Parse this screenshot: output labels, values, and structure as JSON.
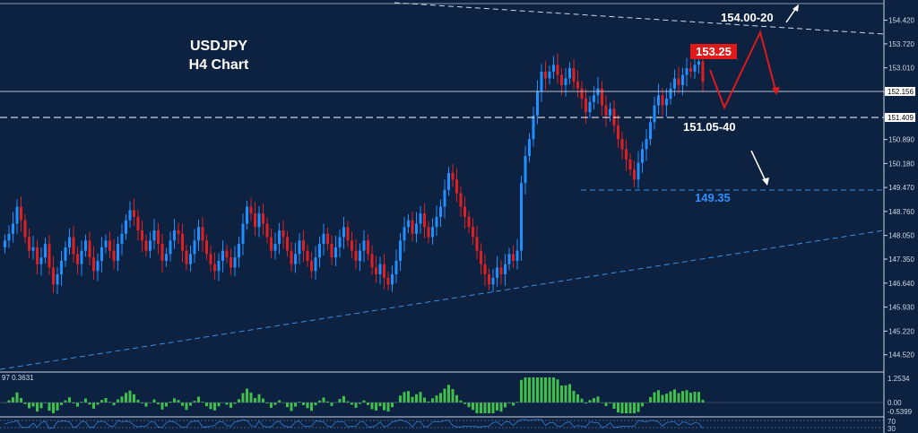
{
  "chart_data": {
    "type": "candlestick",
    "title": "USDJPY",
    "subtitle": "H4 Chart",
    "y_ticks": [
      "154.420",
      "153.720",
      "153.010",
      "152.300",
      "151.590",
      "150.890",
      "150.180",
      "149.470",
      "148.760",
      "148.050",
      "147.350",
      "146.640",
      "145.930",
      "145.220",
      "144.520"
    ],
    "ylim": [
      144.3,
      154.7
    ],
    "price_tags": [
      {
        "label": "152.156",
        "value": 152.156
      },
      {
        "label": "151.409",
        "value": 151.409
      }
    ],
    "levels": [
      {
        "label": "154.00-20",
        "color": "#ffffff"
      },
      {
        "label": "153.25",
        "color": "#ffffff",
        "bg": "#e01919"
      },
      {
        "label": "151.05-40",
        "color": "#ffffff"
      },
      {
        "label": "149.35",
        "color": "#2e8fff"
      }
    ],
    "candles_close": [
      147.9,
      148.1,
      148.4,
      148.9,
      148.5,
      148.0,
      147.6,
      147.7,
      147.2,
      147.4,
      147.8,
      147.1,
      146.6,
      146.9,
      147.3,
      147.7,
      148.0,
      147.5,
      147.2,
      147.6,
      147.9,
      147.4,
      147.0,
      147.3,
      147.7,
      147.9,
      147.6,
      147.3,
      147.8,
      148.1,
      148.5,
      148.8,
      148.6,
      148.2,
      147.9,
      147.6,
      147.9,
      148.2,
      147.8,
      147.3,
      147.5,
      147.9,
      148.2,
      148.1,
      147.6,
      147.2,
      147.5,
      147.9,
      148.3,
      147.9,
      147.5,
      147.2,
      147.0,
      147.3,
      147.6,
      147.4,
      147.1,
      147.4,
      147.8,
      148.4,
      148.9,
      148.7,
      148.3,
      148.7,
      148.4,
      148.0,
      147.6,
      147.8,
      148.2,
      148.0,
      147.6,
      147.2,
      147.5,
      147.9,
      147.6,
      147.3,
      147.0,
      147.4,
      147.8,
      148.1,
      147.8,
      147.4,
      147.7,
      148.0,
      148.3,
      147.9,
      147.6,
      147.3,
      147.6,
      147.9,
      147.5,
      147.1,
      146.9,
      147.2,
      146.8,
      146.6,
      146.9,
      147.3,
      147.9,
      148.3,
      148.5,
      148.1,
      148.4,
      148.7,
      148.3,
      148.0,
      148.3,
      148.6,
      148.9,
      149.4,
      149.9,
      149.7,
      149.3,
      148.9,
      148.6,
      148.3,
      148.0,
      147.6,
      147.2,
      146.9,
      146.6,
      146.8,
      147.1,
      146.9,
      147.2,
      147.5,
      147.3,
      147.6,
      149.6,
      150.4,
      150.9,
      151.6,
      152.3,
      152.9,
      152.7,
      152.9,
      153.1,
      152.8,
      152.5,
      152.7,
      153.0,
      152.6,
      152.4,
      152.1,
      151.7,
      152.0,
      152.2,
      152.4,
      151.9,
      151.6,
      151.8,
      151.3,
      150.9,
      150.6,
      150.3,
      150.0,
      149.7,
      150.2,
      150.6,
      150.9,
      151.4,
      151.9,
      152.2,
      151.9,
      152.1,
      152.4,
      152.7,
      152.5,
      152.8,
      153.0,
      152.9,
      153.1,
      153.2,
      152.6
    ]
  }
}
